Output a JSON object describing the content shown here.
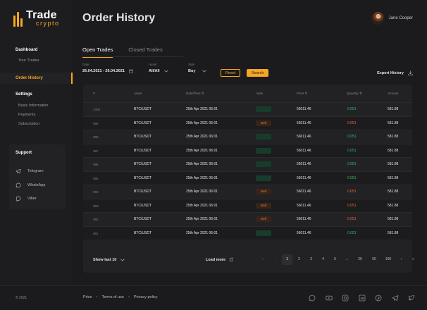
{
  "brand": {
    "title": "Trade",
    "subtitle": "crypto",
    "accent": "#f5a623"
  },
  "sidebar": {
    "dashboard": {
      "label": "Dashboard",
      "items": [
        "Your Trades"
      ]
    },
    "active": "Order History",
    "settings": {
      "label": "Settings",
      "items": [
        "Basic Information",
        "Payments",
        "Subscription"
      ]
    },
    "support": {
      "label": "Support",
      "items": [
        {
          "label": "Telegram",
          "icon": "telegram-icon"
        },
        {
          "label": "WhatsApp",
          "icon": "whatsapp-icon"
        },
        {
          "label": "Viber",
          "icon": "viber-icon"
        }
      ]
    }
  },
  "header": {
    "title": "Order History",
    "user_name": "Jane Cooper"
  },
  "tabs": [
    {
      "label": "Open Trades",
      "active": true
    },
    {
      "label": "Closed Trades",
      "active": false
    }
  ],
  "filters": {
    "date": {
      "label": "Date",
      "value": "26.04.2021 - 26.04.2021"
    },
    "asset": {
      "label": "Asset",
      "value": "All/All"
    },
    "side": {
      "label": "Side",
      "value": "Buy"
    },
    "reset": "Reset",
    "search": "Search",
    "export": "Export History"
  },
  "table": {
    "columns": [
      "#",
      "Asset",
      "Date/Time ⇅",
      "Side",
      "Price ⇅",
      "Quantity ⇅",
      "Amount"
    ],
    "rows": [
      {
        "id": "1000",
        "asset": "BTC/USDT",
        "datetime": "25th Apr 2021 06:01",
        "side": "buy",
        "side_label": "",
        "price": "56011.46",
        "quantity": "0.051",
        "amount": "581.88"
      },
      {
        "id": "999",
        "asset": "BTC/USDT",
        "datetime": "25th Apr 2021 06:01",
        "side": "sell",
        "side_label": "Sell",
        "price": "56011.46",
        "quantity": "0.051",
        "amount": "581.88"
      },
      {
        "id": "998",
        "asset": "BTC/USDT",
        "datetime": "25th Apr 2021 06:01",
        "side": "buy",
        "side_label": "",
        "price": "56011.46",
        "quantity": "0.051",
        "amount": "581.88"
      },
      {
        "id": "997",
        "asset": "BTC/USDT",
        "datetime": "25th Apr 2021 06:01",
        "side": "buy",
        "side_label": "",
        "price": "56011.46",
        "quantity": "0.051",
        "amount": "581.88"
      },
      {
        "id": "996",
        "asset": "BTC/USDT",
        "datetime": "25th Apr 2021 06:01",
        "side": "buy",
        "side_label": "",
        "price": "56011.46",
        "quantity": "0.051",
        "amount": "581.88"
      },
      {
        "id": "995",
        "asset": "BTC/USDT",
        "datetime": "25th Apr 2021 06:01",
        "side": "buy",
        "side_label": "",
        "price": "56011.46",
        "quantity": "0.051",
        "amount": "581.88"
      },
      {
        "id": "994",
        "asset": "BTC/USDT",
        "datetime": "25th Apr 2021 06:01",
        "side": "sell",
        "side_label": "Sell",
        "price": "56011.46",
        "quantity": "0.051",
        "amount": "581.88"
      },
      {
        "id": "993",
        "asset": "BTC/USDT",
        "datetime": "25th Apr 2021 06:01",
        "side": "sell",
        "side_label": "Sell",
        "price": "56011.46",
        "quantity": "0.051",
        "amount": "581.88"
      },
      {
        "id": "992",
        "asset": "BTC/USDT",
        "datetime": "25th Apr 2021 06:01",
        "side": "sell",
        "side_label": "Sell",
        "price": "56011.46",
        "quantity": "0.051",
        "amount": "581.88"
      },
      {
        "id": "991",
        "asset": "BTC/USDT",
        "datetime": "25th Apr 2021 06:01",
        "side": "buy",
        "side_label": "",
        "price": "56011.46",
        "quantity": "0.051",
        "amount": "581.88"
      }
    ],
    "show_last": "Show last 10",
    "load_more": "Load more",
    "pages": [
      "1",
      "2",
      "3",
      "4",
      "5",
      "...",
      "20",
      "50",
      "100"
    ],
    "current_page": "1"
  },
  "footer": {
    "copyright": "© 2021",
    "links": [
      "Price",
      "Terms of use",
      "Privacy policy"
    ],
    "socials": [
      "whatsapp-icon",
      "youtube-icon",
      "instagram-icon",
      "linkedin-icon",
      "pinterest-icon",
      "telegram-icon",
      "twitter-icon"
    ]
  },
  "colors": {
    "buy": "#29c27a",
    "sell": "#ef6a3a",
    "background": "#1b1b1d",
    "panel": "#222224"
  }
}
